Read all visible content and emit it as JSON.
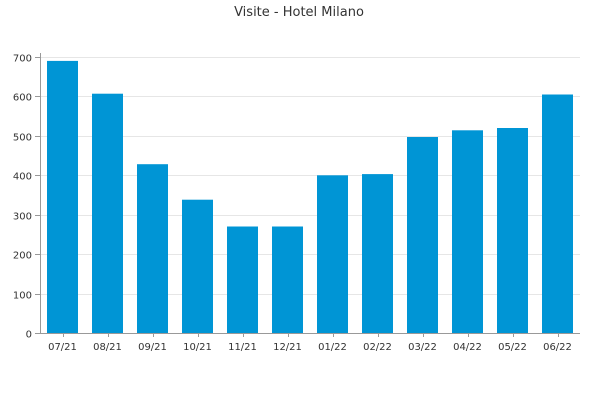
{
  "chart_data": {
    "type": "bar",
    "title": "Visite - Hotel Milano",
    "categories": [
      "07/21",
      "08/21",
      "09/21",
      "10/21",
      "11/21",
      "12/21",
      "01/22",
      "02/22",
      "03/22",
      "04/22",
      "05/22",
      "06/22"
    ],
    "values": [
      690,
      607,
      428,
      338,
      270,
      270,
      400,
      403,
      497,
      514,
      520,
      605
    ],
    "ylim": [
      0,
      700
    ],
    "yticks": [
      0,
      100,
      200,
      300,
      400,
      500,
      600,
      700
    ],
    "ytick_labels": [
      "0",
      "100",
      "200",
      "300",
      "400",
      "500",
      "600",
      "700"
    ],
    "grid": true,
    "bar_color": "#0095d5",
    "grid_color": "#e6e6e6",
    "axis_color": "#999999"
  }
}
